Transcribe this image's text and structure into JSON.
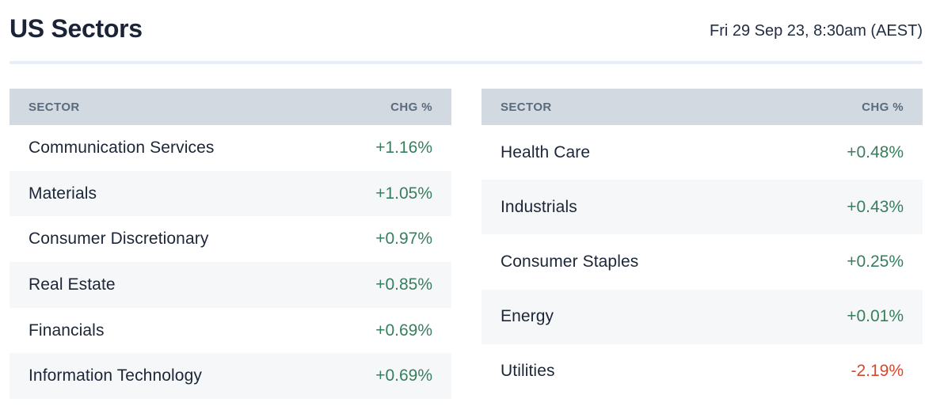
{
  "page": {
    "title": "US Sectors",
    "timestamp": "Fri 29 Sep 23, 8:30am (AEST)"
  },
  "table_headers": {
    "sector": "SECTOR",
    "change": "CHG %"
  },
  "tables": {
    "left": [
      {
        "sector": "Communication Services",
        "change": "+1.16%"
      },
      {
        "sector": "Materials",
        "change": "+1.05%"
      },
      {
        "sector": "Consumer Discretionary",
        "change": "+0.97%"
      },
      {
        "sector": "Real Estate",
        "change": "+0.85%"
      },
      {
        "sector": "Financials",
        "change": "+0.69%"
      },
      {
        "sector": "Information Technology",
        "change": "+0.69%"
      }
    ],
    "right": [
      {
        "sector": "Health Care",
        "change": "+0.48%"
      },
      {
        "sector": "Industrials",
        "change": "+0.43%"
      },
      {
        "sector": "Consumer Staples",
        "change": "+0.25%"
      },
      {
        "sector": "Energy",
        "change": "+0.01%"
      },
      {
        "sector": "Utilities",
        "change": "-2.19%"
      }
    ]
  },
  "colors": {
    "positive": "#377e5e",
    "negative": "#d9472e",
    "header_bg": "#d2d9e0",
    "header_text": "#5a6b7d",
    "row_stripe": "#f6f7f8",
    "text": "#1c2637",
    "divider": "#e7eef6"
  }
}
